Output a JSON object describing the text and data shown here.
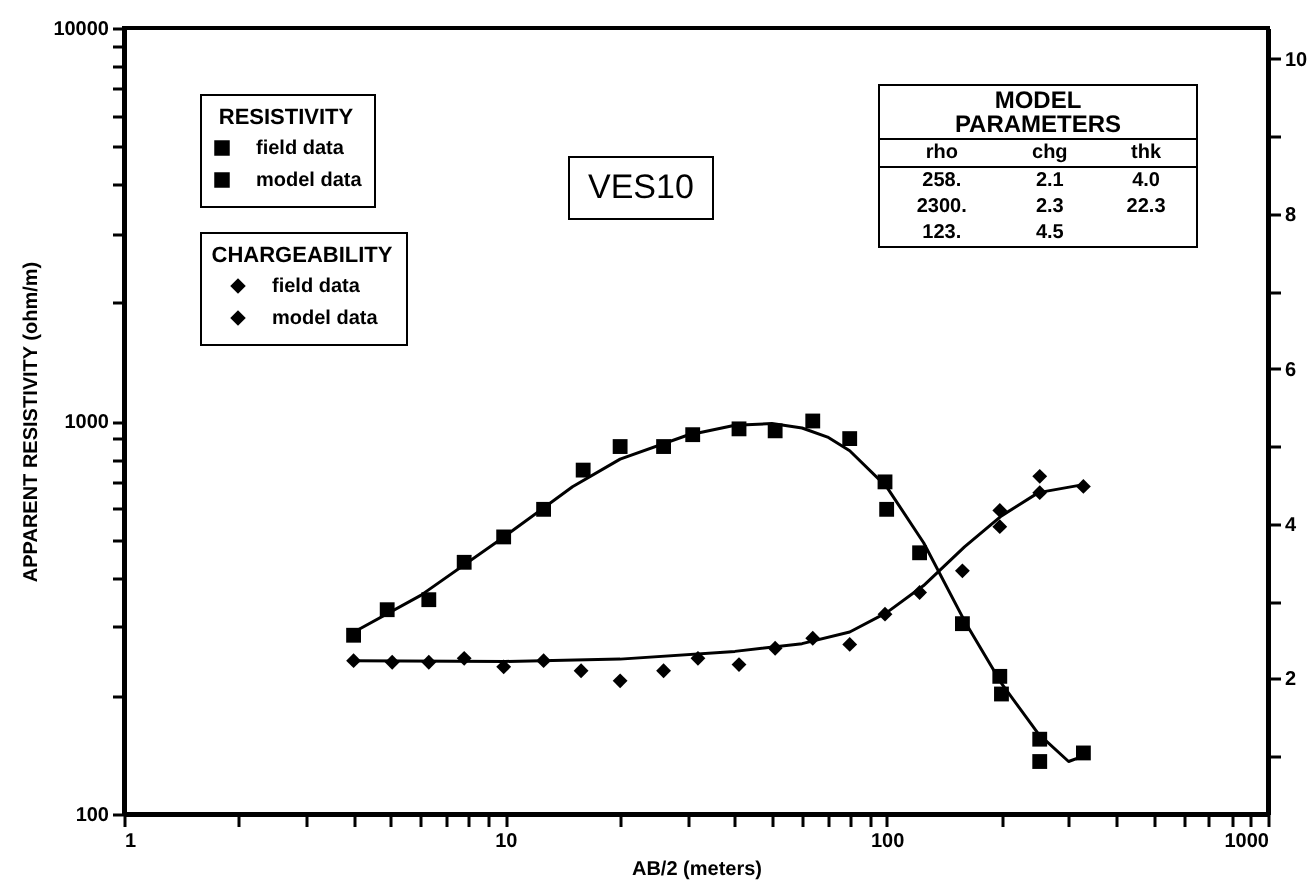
{
  "chart_data": {
    "type": "scatter",
    "xlabel": "AB/2 (meters)",
    "ylabel": "APPARENT RESISTIVITY (ohm/m)",
    "legend_title": [
      "RESISTIVITY",
      "CHARGEABILITY"
    ],
    "legend": "top left",
    "log": "xy",
    "xlim": [
      1,
      1000
    ],
    "xticks": [
      1,
      {
        "value": 2,
        "label": null
      },
      {
        "value": 3,
        "label": null
      },
      {
        "value": 4,
        "label": null
      },
      {
        "value": 5,
        "label": null
      },
      {
        "value": 6,
        "label": null
      },
      {
        "value": 7,
        "label": null
      },
      {
        "value": 8,
        "label": null
      },
      {
        "value": 9,
        "label": null
      },
      10,
      {
        "value": 20,
        "label": null
      },
      {
        "value": 30,
        "label": null
      },
      {
        "value": 40,
        "label": null
      },
      {
        "value": 50,
        "label": null
      },
      {
        "value": 60,
        "label": null
      },
      {
        "value": 70,
        "label": null
      },
      {
        "value": 80,
        "label": null
      },
      {
        "value": 90,
        "label": null
      },
      100,
      {
        "value": 200,
        "label": null
      },
      {
        "value": 300,
        "label": null
      },
      {
        "value": 400,
        "label": null
      },
      {
        "value": 500,
        "label": null
      },
      {
        "value": 600,
        "label": null
      },
      {
        "value": 700,
        "label": null
      },
      {
        "value": 800,
        "label": null
      },
      {
        "value": 900,
        "label": null
      },
      1000
    ],
    "ylim": [
      100,
      10000
    ],
    "yticks": [
      100,
      {
        "value": 200,
        "label": null
      },
      {
        "value": 300,
        "label": null
      },
      {
        "value": 400,
        "label": null
      },
      {
        "value": 500,
        "label": null
      },
      {
        "value": 600,
        "label": null
      },
      {
        "value": 700,
        "label": null
      },
      {
        "value": 800,
        "label": null
      },
      {
        "value": 900,
        "label": null
      },
      1000,
      {
        "value": 2000,
        "label": null
      },
      {
        "value": 3000,
        "label": null
      },
      {
        "value": 4000,
        "label": null
      },
      {
        "value": 5000,
        "label": null
      },
      {
        "value": 6000,
        "label": null
      },
      {
        "value": 7000,
        "label": null
      },
      {
        "value": 8000,
        "label": null
      },
      {
        "value": 9000,
        "label": null
      },
      10000
    ],
    "y2lim": [
      0.25,
      10.4
    ],
    "y2ticks": [
      {
        "value": 1,
        "label": null
      },
      2,
      {
        "value": 3,
        "label": null
      },
      4,
      {
        "value": 5,
        "label": null
      },
      6,
      {
        "value": 7,
        "label": null
      },
      8,
      {
        "value": 9,
        "label": null
      },
      10
    ],
    "series": [
      {
        "name": "field data",
        "marker": "square",
        "color": "#000000",
        "x": [
          4,
          4.9,
          6.3,
          7.8,
          9.9,
          12.6,
          16,
          20,
          26,
          31,
          41,
          51,
          64,
          80,
          99,
          100,
          122,
          158,
          198,
          200,
          252,
          252,
          328
        ],
        "values": [
          285,
          331,
          351,
          437,
          507,
          596,
          750,
          861,
          861,
          923,
          955,
          944,
          1000,
          902,
          700,
          596,
          462,
          305,
          224,
          202,
          155,
          136,
          143
        ]
      },
      {
        "name": "model data",
        "type": "line",
        "line_style": "solid",
        "color": "#000000",
        "x": [
          4,
          6,
          10,
          15,
          20,
          30,
          40,
          50,
          60,
          70,
          80,
          100,
          125,
          160,
          200,
          250,
          300,
          325
        ],
        "values": [
          290,
          360,
          510,
          680,
          800,
          920,
          975,
          985,
          960,
          910,
          840,
          680,
          490,
          310,
          215,
          160,
          136,
          140
        ]
      },
      {
        "name": "field data",
        "marker": "diamond",
        "color": "#000000",
        "axis": "y2",
        "x": [
          4,
          5.05,
          6.3,
          7.8,
          9.9,
          12.6,
          15.8,
          20,
          26,
          32,
          41,
          51,
          64,
          80,
          99,
          122,
          158,
          198,
          198,
          252,
          252,
          328
        ],
        "values": [
          2.23,
          2.21,
          2.21,
          2.26,
          2.15,
          2.23,
          2.1,
          1.97,
          2.1,
          2.26,
          2.18,
          2.39,
          2.52,
          2.44,
          2.83,
          3.11,
          3.39,
          4.17,
          3.96,
          4.61,
          4.4,
          4.48
        ]
      },
      {
        "name": "model data",
        "type": "line",
        "line_style": "solid",
        "color": "#000000",
        "axis": "y2",
        "x": [
          4,
          10,
          20,
          40,
          60,
          80,
          100,
          125,
          160,
          200,
          250,
          325
        ],
        "values": [
          2.23,
          2.22,
          2.25,
          2.35,
          2.45,
          2.6,
          2.85,
          3.2,
          3.7,
          4.1,
          4.4,
          4.5
        ]
      }
    ],
    "annotations": [
      "VES10",
      "MODEL PARAMETERS",
      "rho",
      "chg",
      "thk",
      "258.",
      "2.1",
      "4.0",
      "2300.",
      "2.3",
      "22.3",
      "123.",
      "4.5"
    ]
  }
}
